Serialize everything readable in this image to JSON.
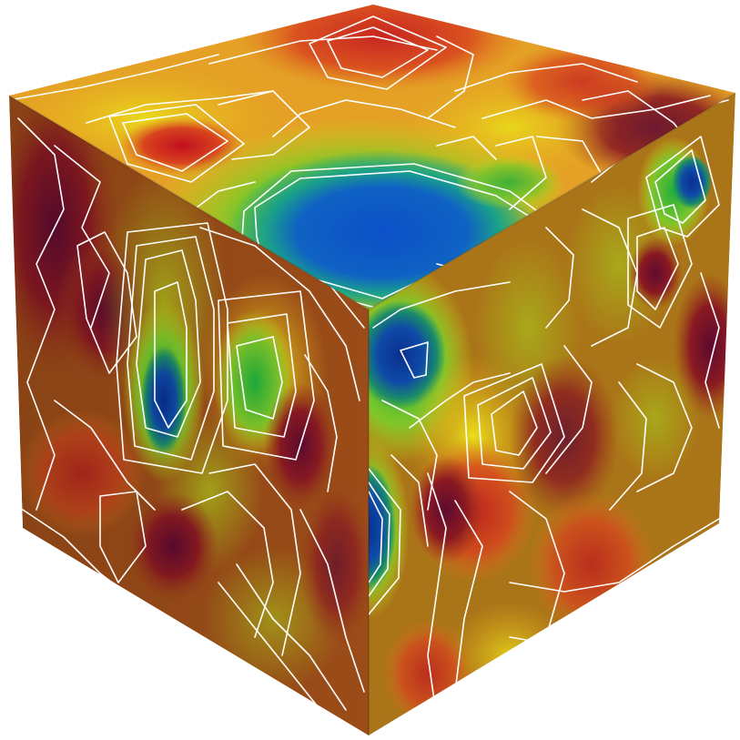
{
  "scene": {
    "object": "cube",
    "background_color": "#ffffff",
    "contour_line_color": "#ffffff",
    "colormap": [
      "#0a2a8c",
      "#0d57c4",
      "#1f9bd0",
      "#1fb35a",
      "#b5d51a",
      "#e9d20f",
      "#f08a18",
      "#d8331f",
      "#8e0f2a",
      "#55052b"
    ],
    "face_base_colors": {
      "top": "#e5a224",
      "left": "#9a4a17",
      "right": "#a8701a"
    }
  }
}
